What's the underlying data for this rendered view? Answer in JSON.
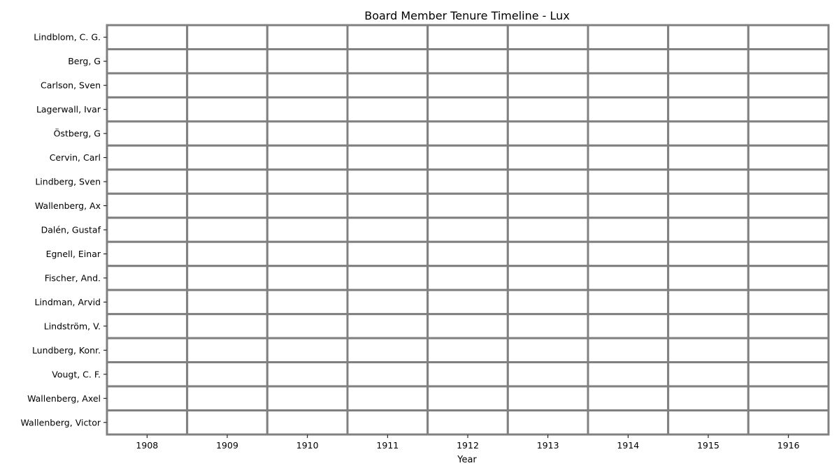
{
  "chart_data": {
    "type": "heatmap",
    "title": "Board Member Tenure Timeline - Lux",
    "xlabel": "Year",
    "ylabel": "",
    "x": [
      "1908",
      "1909",
      "1910",
      "1911",
      "1912",
      "1913",
      "1914",
      "1915",
      "1916"
    ],
    "y": [
      "Lindblom, C. G.",
      "Berg, G",
      "Carlson, Sven",
      "Lagerwall, Ivar",
      "Östberg, G",
      "Cervin, Carl",
      "Lindberg, Sven",
      "Wallenberg, Ax",
      "Dalén, Gustaf",
      "Egnell, Einar",
      "Fischer, And.",
      "Lindman, Arvid",
      "Lindström, V.",
      "Lundberg, Konr.",
      "Vougt, C. F.",
      "Wallenberg, Axel",
      "Wallenberg, Victor"
    ],
    "values": [
      [
        0,
        0,
        0,
        0,
        0,
        0,
        0,
        0,
        0
      ],
      [
        0,
        0,
        0,
        0,
        0,
        0,
        0,
        0,
        0
      ],
      [
        0,
        0,
        0,
        0,
        0,
        0,
        0,
        0,
        0
      ],
      [
        0,
        0,
        0,
        0,
        0,
        0,
        0,
        0,
        0
      ],
      [
        0,
        0,
        0,
        0,
        0,
        0,
        0,
        0,
        0
      ],
      [
        0,
        0,
        0,
        0,
        0,
        0,
        0,
        0,
        0
      ],
      [
        0,
        0,
        0,
        0,
        0,
        0,
        0,
        0,
        0
      ],
      [
        0,
        0,
        0,
        0,
        0,
        0,
        0,
        0,
        0
      ],
      [
        0,
        0,
        0,
        0,
        0,
        0,
        0,
        0,
        0
      ],
      [
        0,
        0,
        0,
        0,
        0,
        0,
        0,
        0,
        0
      ],
      [
        0,
        0,
        0,
        0,
        0,
        0,
        0,
        0,
        0
      ],
      [
        0,
        0,
        0,
        0,
        0,
        0,
        0,
        0,
        0
      ],
      [
        0,
        0,
        0,
        0,
        0,
        0,
        0,
        0,
        0
      ],
      [
        0,
        0,
        0,
        0,
        0,
        0,
        0,
        0,
        0
      ],
      [
        0,
        0,
        0,
        0,
        0,
        0,
        0,
        0,
        0
      ],
      [
        0,
        0,
        0,
        0,
        0,
        0,
        0,
        0,
        0
      ],
      [
        0,
        0,
        0,
        0,
        0,
        0,
        0,
        0,
        0
      ]
    ],
    "colors": {
      "cell_fill": "#ffffff",
      "cell_border": "#808080",
      "axis": "#000000"
    },
    "grid": true,
    "legend": "none"
  }
}
